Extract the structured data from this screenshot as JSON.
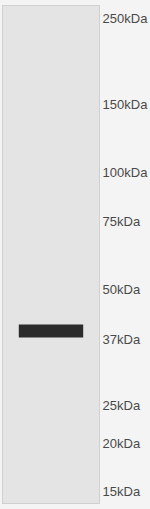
{
  "chart_data": {
    "type": "blot",
    "categories": [
      null
    ],
    "values": [
      39
    ],
    "color": "#2b2b2b",
    "log": "y",
    "ylim": [
      14,
      270
    ],
    "yticks": [
      {
        "value": 250,
        "label": "250kDa"
      },
      {
        "value": 150,
        "label": "150kDa"
      },
      {
        "value": 100,
        "label": "100kDa"
      },
      {
        "value": 75,
        "label": "75kDa"
      },
      {
        "value": 50,
        "label": "50kDa"
      },
      {
        "value": 37,
        "label": "37kDa"
      },
      {
        "value": 25,
        "label": "25kDa"
      },
      {
        "value": 20,
        "label": "20kDa"
      },
      {
        "value": 15,
        "label": "15kDa"
      }
    ],
    "grid": false,
    "tick_labels": "y"
  }
}
